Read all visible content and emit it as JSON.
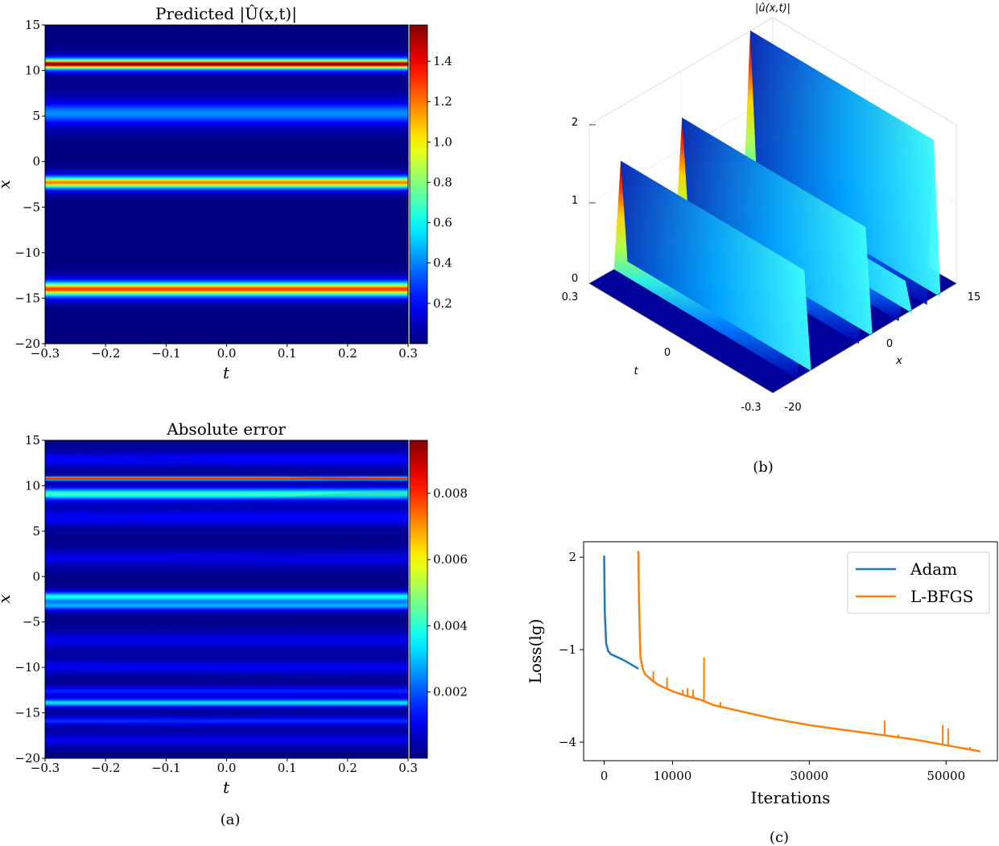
{
  "chart_data": [
    {
      "type": "heatmap",
      "panel": "(a)",
      "title": "Predicted |Û(x,t)|",
      "xlabel": "t",
      "ylabel": "x",
      "xlim": [
        -0.3,
        0.3
      ],
      "ylim": [
        -20,
        15
      ],
      "xticks": [
        "−0.3",
        "−0.2",
        "−0.1",
        "0.0",
        "0.1",
        "0.2",
        "0.3"
      ],
      "yticks": [
        "15",
        "10",
        "5",
        "0",
        "−5",
        "−10",
        "−15",
        "−20"
      ],
      "colorbar": {
        "min": 0.0,
        "max": 1.58,
        "ticks": [
          "1.4",
          "1.2",
          "1.0",
          "0.8",
          "0.6",
          "0.4",
          "0.2"
        ],
        "values": [
          1.4,
          1.2,
          1.0,
          0.8,
          0.6,
          0.4,
          0.2
        ]
      },
      "bands": [
        {
          "x": 10.7,
          "peak": 1.58,
          "width": 0.5
        },
        {
          "x": 5.3,
          "peak": 0.42,
          "width": 1.2
        },
        {
          "x": -2.3,
          "peak": 1.2,
          "width": 0.6
        },
        {
          "x": -14.0,
          "peak": 1.3,
          "width": 0.7
        }
      ]
    },
    {
      "type": "heatmap",
      "panel": "(a)",
      "title": "Absolute error",
      "xlabel": "t",
      "ylabel": "x",
      "xlim": [
        -0.3,
        0.3
      ],
      "ylim": [
        -20,
        15
      ],
      "xticks": [
        "−0.3",
        "−0.2",
        "−0.1",
        "0.0",
        "0.1",
        "0.2",
        "0.3"
      ],
      "yticks": [
        "15",
        "10",
        "5",
        "0",
        "−5",
        "−10",
        "−15",
        "−20"
      ],
      "colorbar": {
        "min": 0.0,
        "max": 0.0096,
        "ticks": [
          "0.008",
          "0.006",
          "0.004",
          "0.002"
        ],
        "values": [
          0.008,
          0.006,
          0.004,
          0.002
        ]
      },
      "bands": [
        {
          "x": 10.8,
          "peak": 0.0095,
          "width": 0.15
        },
        {
          "x": 9.1,
          "peak": 0.0042,
          "width": 0.6
        },
        {
          "x": -2.2,
          "peak": 0.0036,
          "width": 0.5
        },
        {
          "x": -3.2,
          "peak": 0.0026,
          "width": 0.5
        },
        {
          "x": -13.9,
          "peak": 0.0034,
          "width": 0.4
        },
        {
          "x": -12.6,
          "peak": 0.0015,
          "width": 0.5
        },
        {
          "x": -15.9,
          "peak": 0.0016,
          "width": 0.5
        },
        {
          "x": 12.9,
          "peak": 0.0012,
          "width": 0.9
        },
        {
          "x": 6.5,
          "peak": 0.0012,
          "width": 1.0
        },
        {
          "x": 2.0,
          "peak": 0.001,
          "width": 1.0
        },
        {
          "x": -7.0,
          "peak": 0.001,
          "width": 1.0
        },
        {
          "x": -10.0,
          "peak": 0.0011,
          "width": 0.8
        },
        {
          "x": -18.0,
          "peak": 0.001,
          "width": 0.8
        }
      ]
    },
    {
      "type": "surface3d",
      "panel": "(b)",
      "title": "|û(x,t)|",
      "xlabel": "x",
      "ylabel": "t",
      "xticks": [
        "15",
        "0",
        "-20"
      ],
      "yticks": [
        "0.3",
        "0",
        "-0.3"
      ],
      "zticks": [
        "2",
        "1",
        "0"
      ],
      "peaks": [
        {
          "x": -14.0,
          "height": 1.3
        },
        {
          "x": -2.3,
          "height": 1.4
        },
        {
          "x": 5.3,
          "height": 0.45
        },
        {
          "x": 10.7,
          "height": 2.0
        }
      ]
    },
    {
      "type": "line",
      "panel": "(c)",
      "xlabel": "Iterations",
      "ylabel": "Loss(lg)",
      "xlim": [
        -3000,
        57500
      ],
      "ylim": [
        -4.6,
        2.5
      ],
      "xticks": [
        "0",
        "10000",
        "30000",
        "50000"
      ],
      "xtick_values": [
        0,
        10000,
        30000,
        50000
      ],
      "yticks": [
        "2",
        "−1",
        "−4"
      ],
      "ytick_values": [
        2,
        -1,
        -4
      ],
      "legend_position": "top-right",
      "series": [
        {
          "name": "Adam",
          "color": "#1f77b4",
          "x": [
            0,
            100,
            300,
            600,
            1000,
            1500,
            2500,
            3500,
            4500,
            5000
          ],
          "y": [
            2.05,
            0.2,
            -0.8,
            -1.05,
            -1.15,
            -1.2,
            -1.3,
            -1.42,
            -1.55,
            -1.62
          ]
        },
        {
          "name": "L-BFGS",
          "color": "#ff7f0e",
          "x": [
            5000,
            5100,
            5300,
            5600,
            6000,
            7000,
            8000,
            9000,
            10000,
            12000,
            14000,
            16000,
            20000,
            25000,
            30000,
            35000,
            40000,
            45000,
            50000,
            55000
          ],
          "y": [
            2.2,
            0.5,
            -1.2,
            -1.6,
            -1.8,
            -2.0,
            -2.15,
            -2.25,
            -2.35,
            -2.5,
            -2.62,
            -2.8,
            -3.0,
            -3.25,
            -3.45,
            -3.6,
            -3.75,
            -3.9,
            -4.1,
            -4.3
          ],
          "spikes": [
            {
              "x": 7200,
              "y": -1.7
            },
            {
              "x": 9200,
              "y": -1.9
            },
            {
              "x": 11500,
              "y": -2.3
            },
            {
              "x": 12200,
              "y": -2.25
            },
            {
              "x": 13000,
              "y": -2.3
            },
            {
              "x": 14600,
              "y": -1.25
            },
            {
              "x": 17000,
              "y": -2.7
            },
            {
              "x": 41000,
              "y": -3.3
            },
            {
              "x": 43000,
              "y": -3.75
            },
            {
              "x": 49500,
              "y": -3.45
            },
            {
              "x": 50300,
              "y": -3.55
            },
            {
              "x": 53500,
              "y": -4.15
            }
          ]
        }
      ]
    }
  ],
  "labels": {
    "a": "(a)",
    "b": "(b)",
    "c": "(c)"
  }
}
